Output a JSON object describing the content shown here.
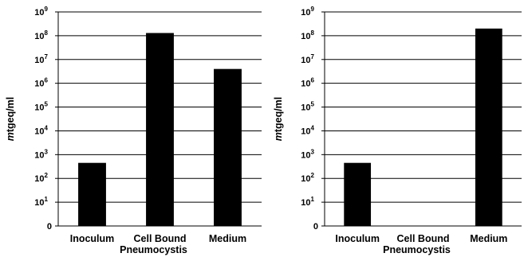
{
  "chart_data": [
    {
      "type": "bar",
      "ylabel_italic": "m",
      "ylabel_rest": "tgeq/ml",
      "xlabel": "Pneumocystis",
      "categories": [
        "Inoculum",
        "Cell Bound",
        "Medium"
      ],
      "values": [
        450,
        130000000,
        4000000
      ],
      "yscale": "log",
      "ylim": [
        1,
        1000000000
      ],
      "tick_labels": [
        {
          "text": "0",
          "exp": ""
        },
        {
          "text": "10",
          "exp": "1"
        },
        {
          "text": "10",
          "exp": "2"
        },
        {
          "text": "10",
          "exp": "3"
        },
        {
          "text": "10",
          "exp": "4"
        },
        {
          "text": "10",
          "exp": "5"
        },
        {
          "text": "10",
          "exp": "6"
        },
        {
          "text": "10",
          "exp": "7"
        },
        {
          "text": "10",
          "exp": "8"
        },
        {
          "text": "10",
          "exp": "9"
        }
      ],
      "grid": true,
      "bar_color": "#000000"
    },
    {
      "type": "bar",
      "ylabel_italic": "m",
      "ylabel_rest": "tgeq/ml",
      "xlabel": "Pneumocystis",
      "categories": [
        "Inoculum",
        "Cell Bound",
        "Medium"
      ],
      "values": [
        450,
        0,
        200000000
      ],
      "yscale": "log",
      "ylim": [
        1,
        1000000000
      ],
      "tick_labels": [
        {
          "text": "0",
          "exp": ""
        },
        {
          "text": "10",
          "exp": "1"
        },
        {
          "text": "10",
          "exp": "2"
        },
        {
          "text": "10",
          "exp": "3"
        },
        {
          "text": "10",
          "exp": "4"
        },
        {
          "text": "10",
          "exp": "5"
        },
        {
          "text": "10",
          "exp": "6"
        },
        {
          "text": "10",
          "exp": "7"
        },
        {
          "text": "10",
          "exp": "8"
        },
        {
          "text": "10",
          "exp": "9"
        }
      ],
      "grid": true,
      "bar_color": "#000000"
    }
  ]
}
